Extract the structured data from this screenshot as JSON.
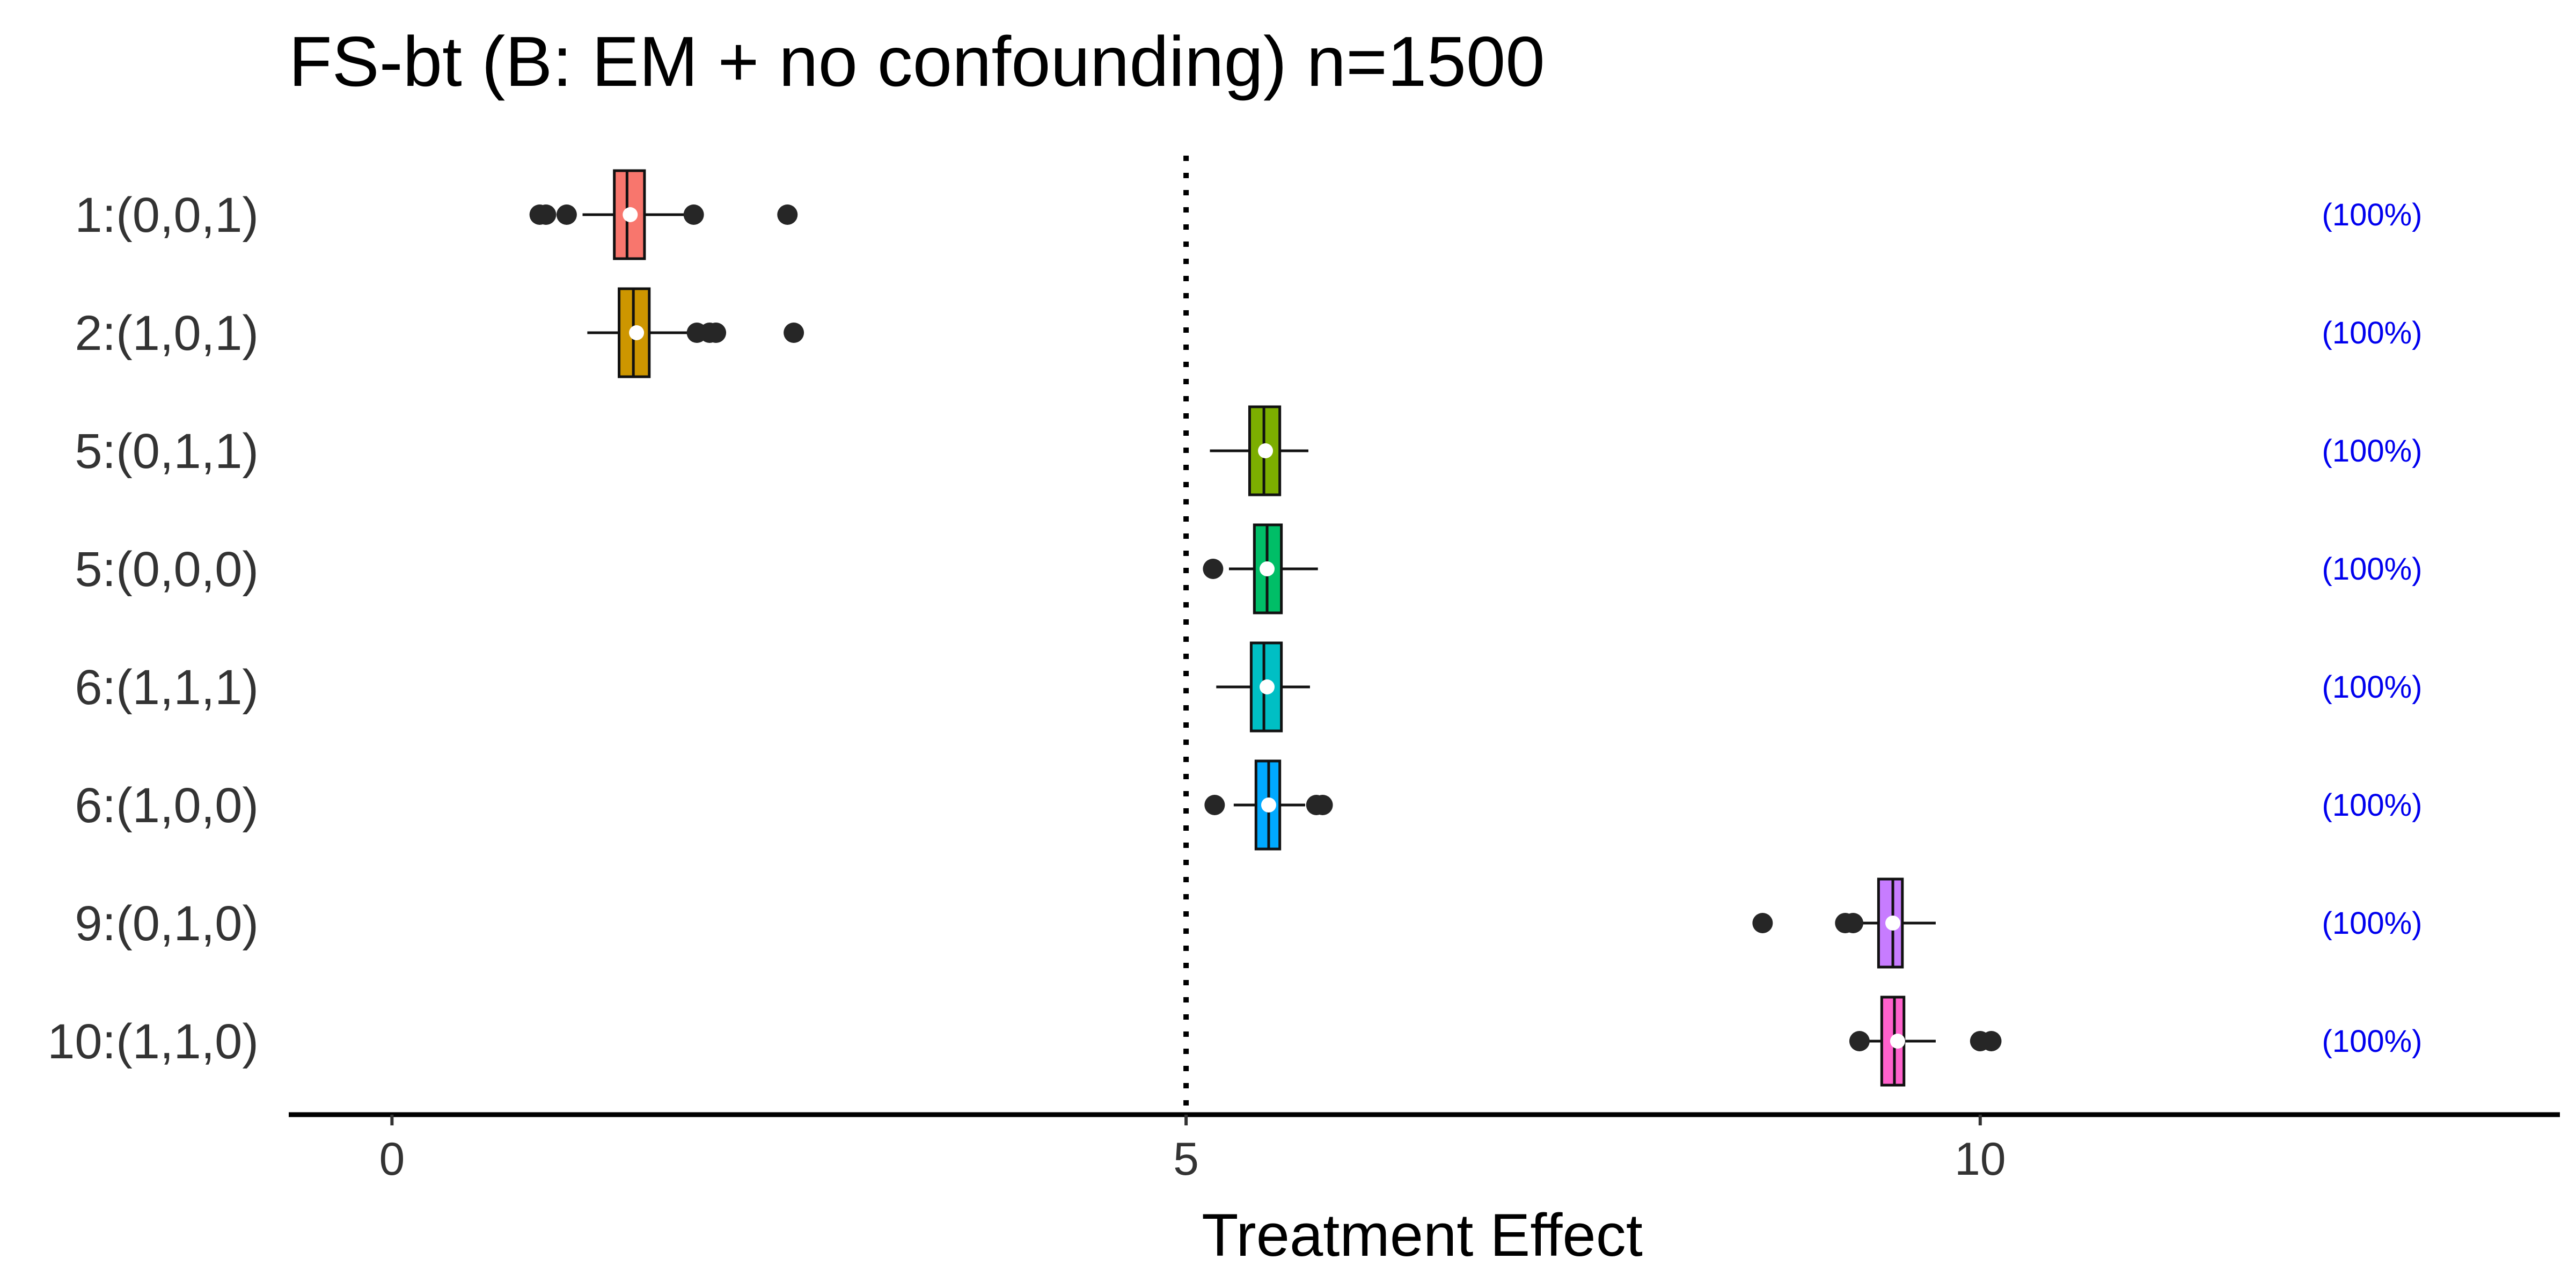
{
  "chart_data": {
    "type": "boxplot",
    "title": "FS-bt (B: EM + no confounding) n=1500",
    "xlabel": "Treatment Effect",
    "ylabel": "",
    "xlim": [
      -0.65,
      13.65
    ],
    "xticks": [
      0,
      5,
      10
    ],
    "reference_line": 5,
    "annotation_color": "#0000ee",
    "groups": [
      {
        "label": "1:(0,0,1)",
        "color": "#f8766d",
        "q1": 1.4,
        "median": 1.48,
        "q3": 1.59,
        "mean": 1.5,
        "whisker_low": 1.2,
        "whisker_high": 1.9,
        "outliers": [
          0.93,
          0.97,
          1.1,
          1.9,
          2.49
        ],
        "annotation": "(100%)"
      },
      {
        "label": "2:(1,0,1)",
        "color": "#cd9600",
        "q1": 1.43,
        "median": 1.52,
        "q3": 1.62,
        "mean": 1.54,
        "whisker_low": 1.23,
        "whisker_high": 1.88,
        "outliers": [
          1.92,
          2.0,
          2.04,
          2.53
        ],
        "annotation": "(100%)"
      },
      {
        "label": "5:(0,1,1)",
        "color": "#7cae00",
        "q1": 5.4,
        "median": 5.49,
        "q3": 5.59,
        "mean": 5.5,
        "whisker_low": 5.15,
        "whisker_high": 5.77,
        "outliers": [],
        "annotation": "(100%)"
      },
      {
        "label": "5:(0,0,0)",
        "color": "#00be67",
        "q1": 5.43,
        "median": 5.51,
        "q3": 5.6,
        "mean": 5.51,
        "whisker_low": 5.27,
        "whisker_high": 5.83,
        "outliers": [
          5.17
        ],
        "annotation": "(100%)"
      },
      {
        "label": "6:(1,1,1)",
        "color": "#00bfc4",
        "q1": 5.41,
        "median": 5.49,
        "q3": 5.6,
        "mean": 5.51,
        "whisker_low": 5.19,
        "whisker_high": 5.78,
        "outliers": [],
        "annotation": "(100%)"
      },
      {
        "label": "6:(1,0,0)",
        "color": "#00a9ff",
        "q1": 5.44,
        "median": 5.52,
        "q3": 5.59,
        "mean": 5.52,
        "whisker_low": 5.3,
        "whisker_high": 5.75,
        "outliers": [
          5.18,
          5.82,
          5.86
        ],
        "annotation": "(100%)"
      },
      {
        "label": "9:(0,1,0)",
        "color": "#c77cff",
        "q1": 9.36,
        "median": 9.45,
        "q3": 9.51,
        "mean": 9.45,
        "whisker_low": 9.21,
        "whisker_high": 9.72,
        "outliers": [
          8.63,
          9.15,
          9.2
        ],
        "annotation": "(100%)"
      },
      {
        "label": "10:(1,1,0)",
        "color": "#ff61cc",
        "q1": 9.38,
        "median": 9.46,
        "q3": 9.52,
        "mean": 9.48,
        "whisker_low": 9.25,
        "whisker_high": 9.72,
        "outliers": [
          9.24,
          10.0,
          10.07
        ],
        "annotation": "(100%)"
      }
    ]
  }
}
